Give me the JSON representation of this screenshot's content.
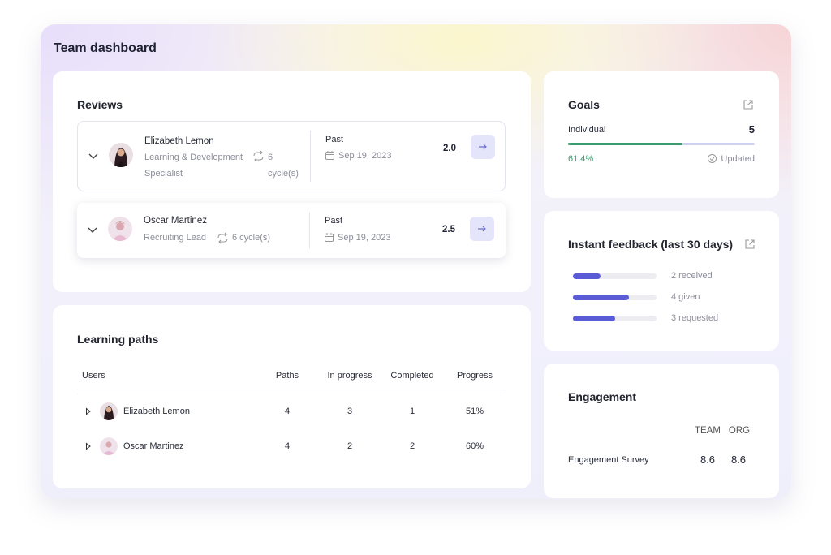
{
  "header": {
    "title": "Team dashboard"
  },
  "reviews": {
    "title": "Reviews",
    "rows": [
      {
        "name": "Elizabeth Lemon",
        "role": "Learning & Development Specialist",
        "cycles": "6 cycle(s)",
        "status": "Past",
        "date": "Sep 19, 2023",
        "score": "2.0"
      },
      {
        "name": "Oscar Martinez",
        "role": "Recruiting Lead",
        "cycles": "6 cycle(s)",
        "status": "Past",
        "date": "Sep 19, 2023",
        "score": "2.5"
      }
    ]
  },
  "learning_paths": {
    "title": "Learning paths",
    "columns": [
      "Users",
      "Paths",
      "In progress",
      "Completed",
      "Progress"
    ],
    "rows": [
      [
        "Elizabeth Lemon",
        4,
        3,
        1,
        "51%"
      ],
      [
        "Oscar Martinez",
        4,
        2,
        2,
        "60%"
      ]
    ]
  },
  "goals": {
    "title": "Goals",
    "label": "Individual",
    "count": 5,
    "progress": {
      "value": 61.4,
      "label": "61.4%"
    },
    "status": "Updated"
  },
  "feedback": {
    "title": "Instant feedback (last 30 days)",
    "items": [
      {
        "value": 2,
        "label": "2 received"
      },
      {
        "value": 4,
        "label": "4 given"
      },
      {
        "value": 3,
        "label": "3 requested"
      }
    ]
  },
  "engagement": {
    "title": "Engagement",
    "columns": [
      "TEAM",
      "ORG"
    ],
    "rows": [
      {
        "label": "Engagement Survey",
        "values": [
          8.6,
          8.6
        ]
      }
    ]
  }
}
